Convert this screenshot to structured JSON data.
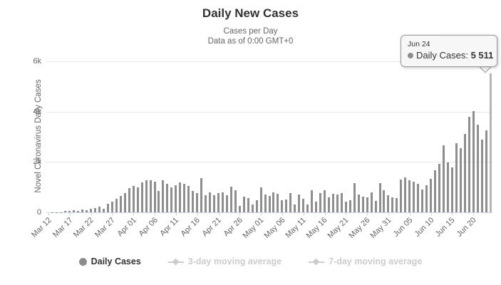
{
  "header": {
    "title": "Daily New Cases",
    "subtitle1": "Cases per Day",
    "subtitle2": "Data as of 0:00 GMT+0"
  },
  "y_axis": {
    "title": "Novel Coronavirus Daily Cases",
    "tick_labels": [
      "0",
      "2k",
      "4k",
      "6k"
    ]
  },
  "tooltip": {
    "date": "Jun 24",
    "series_label": "Daily Cases:",
    "value": "5 511"
  },
  "legend": [
    {
      "label": "Daily Cases",
      "marker": "circle-marker",
      "active": true
    },
    {
      "label": "3-day moving average",
      "marker": "line-diamond-marker",
      "active": false
    },
    {
      "label": "7-day moving average",
      "marker": "line-diamond-marker",
      "active": false
    }
  ],
  "colors": {
    "bar": "#8e8e8e",
    "bar_highlight": "#b5b5b5",
    "gridline": "#e6e6e6",
    "axis_line": "#ccd6eb",
    "text_dark": "#333333",
    "text_gray": "#666666",
    "legend_disabled": "#cccccc",
    "tooltip_border": "#999999"
  },
  "chart_data": {
    "type": "bar",
    "title": "Daily New Cases",
    "subtitle": "Cases per Day — Data as of 0:00 GMT+0",
    "ylabel": "Novel Coronavirus Daily Cases",
    "xlabel": "",
    "ylim": [
      0,
      6000
    ],
    "y_ticks": [
      0,
      2000,
      4000,
      6000
    ],
    "grid": true,
    "legend_position": "bottom",
    "highlighted_point": {
      "x": "Jun 24",
      "value": 5511
    },
    "x_tick_labels": [
      "Mar 12",
      "Mar 17",
      "Mar 22",
      "Mar 27",
      "Apr 01",
      "Apr 06",
      "Apr 11",
      "Apr 16",
      "Apr 21",
      "Apr 26",
      "May 01",
      "May 06",
      "May 11",
      "May 16",
      "May 21",
      "May 26",
      "May 31",
      "Jun 05",
      "Jun 10",
      "Jun 15",
      "Jun 20"
    ],
    "x": [
      "Mar 12",
      "Mar 13",
      "Mar 14",
      "Mar 15",
      "Mar 16",
      "Mar 17",
      "Mar 18",
      "Mar 19",
      "Mar 20",
      "Mar 21",
      "Mar 22",
      "Mar 23",
      "Mar 24",
      "Mar 25",
      "Mar 26",
      "Mar 27",
      "Mar 28",
      "Mar 29",
      "Mar 30",
      "Mar 31",
      "Apr 01",
      "Apr 02",
      "Apr 03",
      "Apr 04",
      "Apr 05",
      "Apr 06",
      "Apr 07",
      "Apr 08",
      "Apr 09",
      "Apr 10",
      "Apr 11",
      "Apr 12",
      "Apr 13",
      "Apr 14",
      "Apr 15",
      "Apr 16",
      "Apr 17",
      "Apr 18",
      "Apr 19",
      "Apr 20",
      "Apr 21",
      "Apr 22",
      "Apr 23",
      "Apr 24",
      "Apr 25",
      "Apr 26",
      "Apr 27",
      "Apr 28",
      "Apr 29",
      "Apr 30",
      "May 01",
      "May 02",
      "May 03",
      "May 04",
      "May 05",
      "May 06",
      "May 07",
      "May 08",
      "May 09",
      "May 10",
      "May 11",
      "May 12",
      "May 13",
      "May 14",
      "May 15",
      "May 16",
      "May 17",
      "May 18",
      "May 19",
      "May 20",
      "May 21",
      "May 22",
      "May 23",
      "May 24",
      "May 25",
      "May 26",
      "May 27",
      "May 28",
      "May 29",
      "May 30",
      "May 31",
      "Jun 01",
      "Jun 02",
      "Jun 03",
      "Jun 04",
      "Jun 05",
      "Jun 06",
      "Jun 07",
      "Jun 08",
      "Jun 09",
      "Jun 10",
      "Jun 11",
      "Jun 12",
      "Jun 13",
      "Jun 14",
      "Jun 15",
      "Jun 16",
      "Jun 17",
      "Jun 18",
      "Jun 19",
      "Jun 20",
      "Jun 21",
      "Jun 22",
      "Jun 23",
      "Jun 24"
    ],
    "values": [
      1,
      3,
      6,
      10,
      60,
      50,
      75,
      55,
      105,
      75,
      130,
      160,
      235,
      140,
      350,
      425,
      540,
      660,
      775,
      950,
      1040,
      990,
      1180,
      1270,
      1270,
      1230,
      850,
      1270,
      1130,
      990,
      1080,
      1180,
      1130,
      1040,
      840,
      775,
      1360,
      680,
      790,
      680,
      755,
      790,
      680,
      1010,
      870,
      255,
      630,
      565,
      300,
      490,
      980,
      700,
      660,
      790,
      745,
      470,
      510,
      775,
      300,
      700,
      540,
      320,
      870,
      415,
      755,
      885,
      600,
      725,
      700,
      775,
      415,
      470,
      1150,
      700,
      630,
      600,
      790,
      445,
      1170,
      870,
      680,
      600,
      560,
      1310,
      1390,
      1270,
      1230,
      1140,
      920,
      1070,
      1340,
      1680,
      1920,
      2650,
      1970,
      1780,
      2740,
      2550,
      3110,
      3800,
      4010,
      3470,
      2900,
      3250,
      5511
    ]
  }
}
